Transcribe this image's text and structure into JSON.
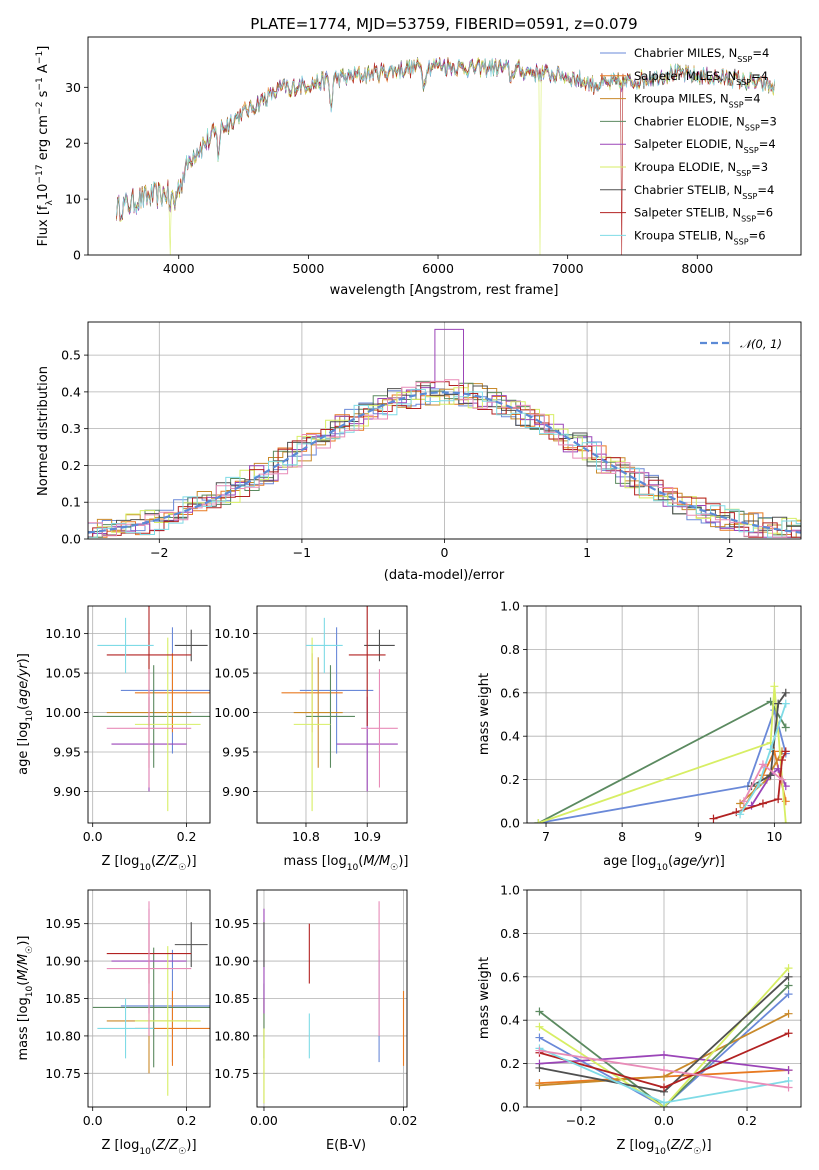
{
  "figure": {
    "title": "PLATE=1774, MJD=53759, FIBERID=0591, z=0.079"
  },
  "colors": [
    "#6a89d8",
    "#e87a22",
    "#c98a2b",
    "#5b8a60",
    "#9b45b8",
    "#d7ee64",
    "#505050",
    "#b22222",
    "#7fdbe6",
    "#e88cb8"
  ],
  "chart_data": [
    {
      "id": "spectrum",
      "type": "line",
      "xlabel": "wavelength [Angstrom, rest frame]",
      "ylabel": "Flux [f_λ 10^-17 erg cm^-2 s^-1 A^-1]",
      "xlim": [
        3300,
        8800
      ],
      "ylim": [
        0,
        39
      ],
      "xticks": [
        4000,
        5000,
        6000,
        7000,
        8000
      ],
      "yticks": [
        0,
        10,
        20,
        30
      ],
      "legend_position": "top-right",
      "legend": [
        {
          "base": "Chabrier MILES, N",
          "sub": "SSP",
          "tail": "=4"
        },
        {
          "base": "Salpeter MILES, N",
          "sub": "SSP",
          "tail": "=4"
        },
        {
          "base": "Kroupa MILES, N",
          "sub": "SSP",
          "tail": "=4"
        },
        {
          "base": "Chabrier ELODIE, N",
          "sub": "SSP",
          "tail": "=3"
        },
        {
          "base": "Salpeter ELODIE, N",
          "sub": "SSP",
          "tail": "=4"
        },
        {
          "base": "Kroupa ELODIE, N",
          "sub": "SSP",
          "tail": "=3"
        },
        {
          "base": "Chabrier STELIB, N",
          "sub": "SSP",
          "tail": "=4"
        },
        {
          "base": "Salpeter STELIB, N",
          "sub": "SSP",
          "tail": "=6"
        },
        {
          "base": "Kroupa STELIB, N",
          "sub": "SSP",
          "tail": "=6"
        }
      ],
      "continuum": {
        "x": [
          3500,
          3700,
          3900,
          4000,
          4100,
          4300,
          4400,
          4600,
          4800,
          5000,
          5200,
          5500,
          5800,
          6000,
          6200,
          6500,
          6800,
          7000,
          7200,
          7500,
          7800,
          8000,
          8300,
          8600
        ],
        "y": [
          8,
          10,
          11,
          12,
          18,
          22,
          24,
          27,
          30,
          30.5,
          31.5,
          32.5,
          33.5,
          34,
          33.5,
          33.5,
          32.5,
          32,
          30.5,
          31,
          32.5,
          32,
          31.5,
          30
        ]
      },
      "absorption_lines": [
        {
          "x": 3934,
          "depth": 3
        },
        {
          "x": 3969,
          "depth": 3
        },
        {
          "x": 4305,
          "depth": 4
        },
        {
          "x": 4861,
          "depth": 2
        },
        {
          "x": 5175,
          "depth": 6
        },
        {
          "x": 5893,
          "depth": 4
        },
        {
          "x": 6563,
          "depth": 2
        }
      ],
      "dropouts": [
        {
          "x": 3930,
          "series": 5
        },
        {
          "x": 6790,
          "series": 5
        },
        {
          "x": 7420,
          "series": 7
        }
      ]
    },
    {
      "id": "residuals",
      "type": "line",
      "xlabel": "(data-model)/error",
      "ylabel": "Normed distribution",
      "xlim": [
        -2.5,
        2.5
      ],
      "ylim": [
        0,
        0.59
      ],
      "xticks": [
        -2,
        -1,
        0,
        1,
        2
      ],
      "yticks": [
        0.0,
        0.1,
        0.2,
        0.3,
        0.4,
        0.5
      ],
      "grid": true,
      "bin_width": 0.1,
      "legend_position": "top-right",
      "legend": {
        "label": "𝒩(0, 1)"
      },
      "normal": {
        "mean": 0,
        "sigma": 1
      }
    },
    {
      "id": "age_vs_Z",
      "type": "scatter",
      "xlabel": "Z [log10(Z/Z☉)]",
      "ylabel": "age [log10(age/yr)]",
      "xlim": [
        -0.01,
        0.25
      ],
      "ylim": [
        9.86,
        10.135
      ],
      "xticks": [
        0.0,
        0.2
      ],
      "yticks": [
        9.9,
        9.95,
        10.0,
        10.05,
        10.1
      ],
      "grid": true,
      "points": [
        {
          "x": 0.17,
          "y": 10.028,
          "xerr": 0.11,
          "yerr": 0.08
        },
        {
          "x": 0.17,
          "y": 10.025,
          "xerr": 0.08,
          "yerr": 0.05
        },
        {
          "x": 0.12,
          "y": 10.0,
          "xerr": 0.09,
          "yerr": 0.07
        },
        {
          "x": 0.13,
          "y": 9.995,
          "xerr": 0.13,
          "yerr": 0.065
        },
        {
          "x": 0.12,
          "y": 9.96,
          "xerr": 0.08,
          "yerr": 0.06
        },
        {
          "x": 0.16,
          "y": 9.985,
          "xerr": 0.07,
          "yerr": 0.11
        },
        {
          "x": 0.21,
          "y": 10.085,
          "xerr": 0.035,
          "yerr": 0.02
        },
        {
          "x": 0.12,
          "y": 10.073,
          "xerr": 0.09,
          "yerr": 0.09
        },
        {
          "x": 0.07,
          "y": 10.085,
          "xerr": 0.06,
          "yerr": 0.035
        },
        {
          "x": 0.12,
          "y": 9.98,
          "xerr": 0.09,
          "yerr": 0.075
        }
      ]
    },
    {
      "id": "age_vs_mass",
      "type": "scatter",
      "xlabel": "mass [log10(M/M☉)]",
      "ylabel": "",
      "xlim": [
        10.72,
        10.965
      ],
      "ylim": [
        9.86,
        10.135
      ],
      "xticks": [
        10.8,
        10.9
      ],
      "yticks": [
        9.9,
        9.95,
        10.0,
        10.05,
        10.1
      ],
      "grid": true,
      "points": [
        {
          "x": 10.85,
          "y": 10.028,
          "xerr": 0.06,
          "yerr": 0.08
        },
        {
          "x": 10.81,
          "y": 10.025,
          "xerr": 0.05,
          "yerr": 0.05
        },
        {
          "x": 10.82,
          "y": 10.0,
          "xerr": 0.04,
          "yerr": 0.07
        },
        {
          "x": 10.84,
          "y": 9.995,
          "xerr": 0.04,
          "yerr": 0.065
        },
        {
          "x": 10.9,
          "y": 9.96,
          "xerr": 0.05,
          "yerr": 0.06
        },
        {
          "x": 10.81,
          "y": 9.985,
          "xerr": 0.03,
          "yerr": 0.11
        },
        {
          "x": 10.92,
          "y": 10.085,
          "xerr": 0.025,
          "yerr": 0.02
        },
        {
          "x": 10.9,
          "y": 10.073,
          "xerr": 0.03,
          "yerr": 0.09
        },
        {
          "x": 10.83,
          "y": 10.085,
          "xerr": 0.03,
          "yerr": 0.035
        },
        {
          "x": 10.92,
          "y": 9.98,
          "xerr": 0.03,
          "yerr": 0.075
        }
      ]
    },
    {
      "id": "weight_vs_age",
      "type": "line",
      "xlabel": "age [log10(age/yr)]",
      "ylabel": "mass weight",
      "xlim": [
        6.75,
        10.35
      ],
      "ylim": [
        0,
        1.0
      ],
      "xticks": [
        7,
        8,
        9,
        10
      ],
      "yticks": [
        0.0,
        0.2,
        0.4,
        0.6,
        0.8,
        1.0
      ],
      "grid": true,
      "series": [
        {
          "x": [
            6.9,
            9.65,
            10.0,
            10.15
          ],
          "y": [
            0.0,
            0.17,
            0.52,
            0.32
          ]
        },
        {
          "x": [
            9.6,
            9.85,
            10.0,
            10.15
          ],
          "y": [
            0.07,
            0.22,
            0.33,
            0.1
          ]
        },
        {
          "x": [
            9.55,
            9.9,
            10.1
          ],
          "y": [
            0.09,
            0.2,
            0.33
          ]
        },
        {
          "x": [
            6.9,
            9.95,
            10.15
          ],
          "y": [
            0.0,
            0.56,
            0.44
          ]
        },
        {
          "x": [
            9.7,
            9.95,
            10.05,
            10.15
          ],
          "y": [
            0.08,
            0.22,
            0.25,
            0.17
          ]
        },
        {
          "x": [
            6.9,
            9.95,
            10.0,
            10.15
          ],
          "y": [
            0.0,
            0.37,
            0.63,
            0.0
          ]
        },
        {
          "x": [
            9.7,
            9.95,
            10.05,
            10.15
          ],
          "y": [
            0.17,
            0.22,
            0.55,
            0.6
          ]
        },
        {
          "x": [
            9.2,
            9.5,
            9.85,
            10.05,
            10.1,
            10.15
          ],
          "y": [
            0.02,
            0.05,
            0.09,
            0.11,
            0.29,
            0.33
          ]
        },
        {
          "x": [
            9.55,
            9.8,
            9.95,
            10.15
          ],
          "y": [
            0.04,
            0.18,
            0.34,
            0.55
          ]
        },
        {
          "x": [
            9.6,
            9.85,
            10.1
          ],
          "y": [
            0.1,
            0.27,
            0.2
          ]
        }
      ]
    },
    {
      "id": "mass_vs_Z",
      "type": "scatter",
      "xlabel": "Z [log10(Z/Z☉)]",
      "ylabel": "mass [log10(M/M☉)]",
      "xlim": [
        -0.01,
        0.25
      ],
      "ylim": [
        10.705,
        10.995
      ],
      "xticks": [
        0.0,
        0.2
      ],
      "yticks": [
        10.75,
        10.8,
        10.85,
        10.9,
        10.95
      ],
      "grid": true,
      "points": [
        {
          "x": 0.17,
          "y": 10.84,
          "xerr": 0.11,
          "yerr": 0.075
        },
        {
          "x": 0.17,
          "y": 10.81,
          "xerr": 0.08,
          "yerr": 0.05
        },
        {
          "x": 0.12,
          "y": 10.82,
          "xerr": 0.09,
          "yerr": 0.07
        },
        {
          "x": 0.13,
          "y": 10.838,
          "xerr": 0.13,
          "yerr": 0.08
        },
        {
          "x": 0.12,
          "y": 10.9,
          "xerr": 0.08,
          "yerr": 0.07
        },
        {
          "x": 0.16,
          "y": 10.82,
          "xerr": 0.07,
          "yerr": 0.1
        },
        {
          "x": 0.21,
          "y": 10.922,
          "xerr": 0.035,
          "yerr": 0.03
        },
        {
          "x": 0.12,
          "y": 10.91,
          "xerr": 0.09,
          "yerr": 0.04
        },
        {
          "x": 0.07,
          "y": 10.81,
          "xerr": 0.06,
          "yerr": 0.04
        },
        {
          "x": 0.12,
          "y": 10.89,
          "xerr": 0.09,
          "yerr": 0.09
        }
      ]
    },
    {
      "id": "mass_vs_EBV",
      "type": "scatter",
      "xlabel": "E(B-V)",
      "ylabel": "",
      "xlim": [
        -0.001,
        0.0205
      ],
      "ylim": [
        10.705,
        10.995
      ],
      "xticks": [
        0.0,
        0.02
      ],
      "yticks": [
        10.75,
        10.8,
        10.85,
        10.9,
        10.95
      ],
      "grid": true,
      "points": [
        {
          "x": 0.0165,
          "y": 10.84,
          "xerr": 0,
          "yerr": 0.075
        },
        {
          "x": 0.02,
          "y": 10.81,
          "xerr": 0,
          "yerr": 0.05
        },
        {
          "x": 0.0,
          "y": 10.78,
          "xerr": 0,
          "yerr": 0.07
        },
        {
          "x": 0.0,
          "y": 10.82,
          "xerr": 0,
          "yerr": 0.05
        },
        {
          "x": 0.0,
          "y": 10.9,
          "xerr": 0,
          "yerr": 0.07
        },
        {
          "x": 0.0,
          "y": 10.76,
          "xerr": 0,
          "yerr": 0.05
        },
        {
          "x": 0.0,
          "y": 10.922,
          "xerr": 0,
          "yerr": 0.03
        },
        {
          "x": 0.0065,
          "y": 10.91,
          "xerr": 0,
          "yerr": 0.04
        },
        {
          "x": 0.0065,
          "y": 10.8,
          "xerr": 0,
          "yerr": 0.03
        },
        {
          "x": 0.0165,
          "y": 10.89,
          "xerr": 0,
          "yerr": 0.09
        }
      ]
    },
    {
      "id": "weight_vs_Z",
      "type": "line",
      "xlabel": "Z [log10(Z/Z☉)]",
      "ylabel": "mass weight",
      "xlim": [
        -0.33,
        0.33
      ],
      "ylim": [
        0,
        1.0
      ],
      "xticks": [
        -0.2,
        0.0,
        0.2
      ],
      "yticks": [
        0.0,
        0.2,
        0.4,
        0.6,
        0.8,
        1.0
      ],
      "grid": true,
      "series": [
        {
          "x": [
            -0.3,
            0.0,
            0.3
          ],
          "y": [
            0.32,
            0.0,
            0.52
          ]
        },
        {
          "x": [
            -0.3,
            0.0,
            0.3
          ],
          "y": [
            0.11,
            0.14,
            0.17
          ]
        },
        {
          "x": [
            -0.3,
            0.0,
            0.3
          ],
          "y": [
            0.1,
            0.14,
            0.43
          ]
        },
        {
          "x": [
            -0.3,
            0.0,
            0.3
          ],
          "y": [
            0.44,
            0.0,
            0.56
          ]
        },
        {
          "x": [
            -0.3,
            0.0,
            0.3
          ],
          "y": [
            0.2,
            0.24,
            0.17
          ]
        },
        {
          "x": [
            -0.3,
            0.0,
            0.3
          ],
          "y": [
            0.37,
            0.0,
            0.64
          ]
        },
        {
          "x": [
            -0.3,
            0.0,
            0.3
          ],
          "y": [
            0.18,
            0.07,
            0.6
          ]
        },
        {
          "x": [
            -0.3,
            0.0,
            0.3
          ],
          "y": [
            0.25,
            0.09,
            0.34
          ]
        },
        {
          "x": [
            -0.3,
            0.0,
            0.3
          ],
          "y": [
            0.27,
            0.02,
            0.12
          ]
        },
        {
          "x": [
            -0.3,
            0.0,
            0.3
          ],
          "y": [
            0.26,
            0.17,
            0.09
          ]
        }
      ]
    }
  ]
}
